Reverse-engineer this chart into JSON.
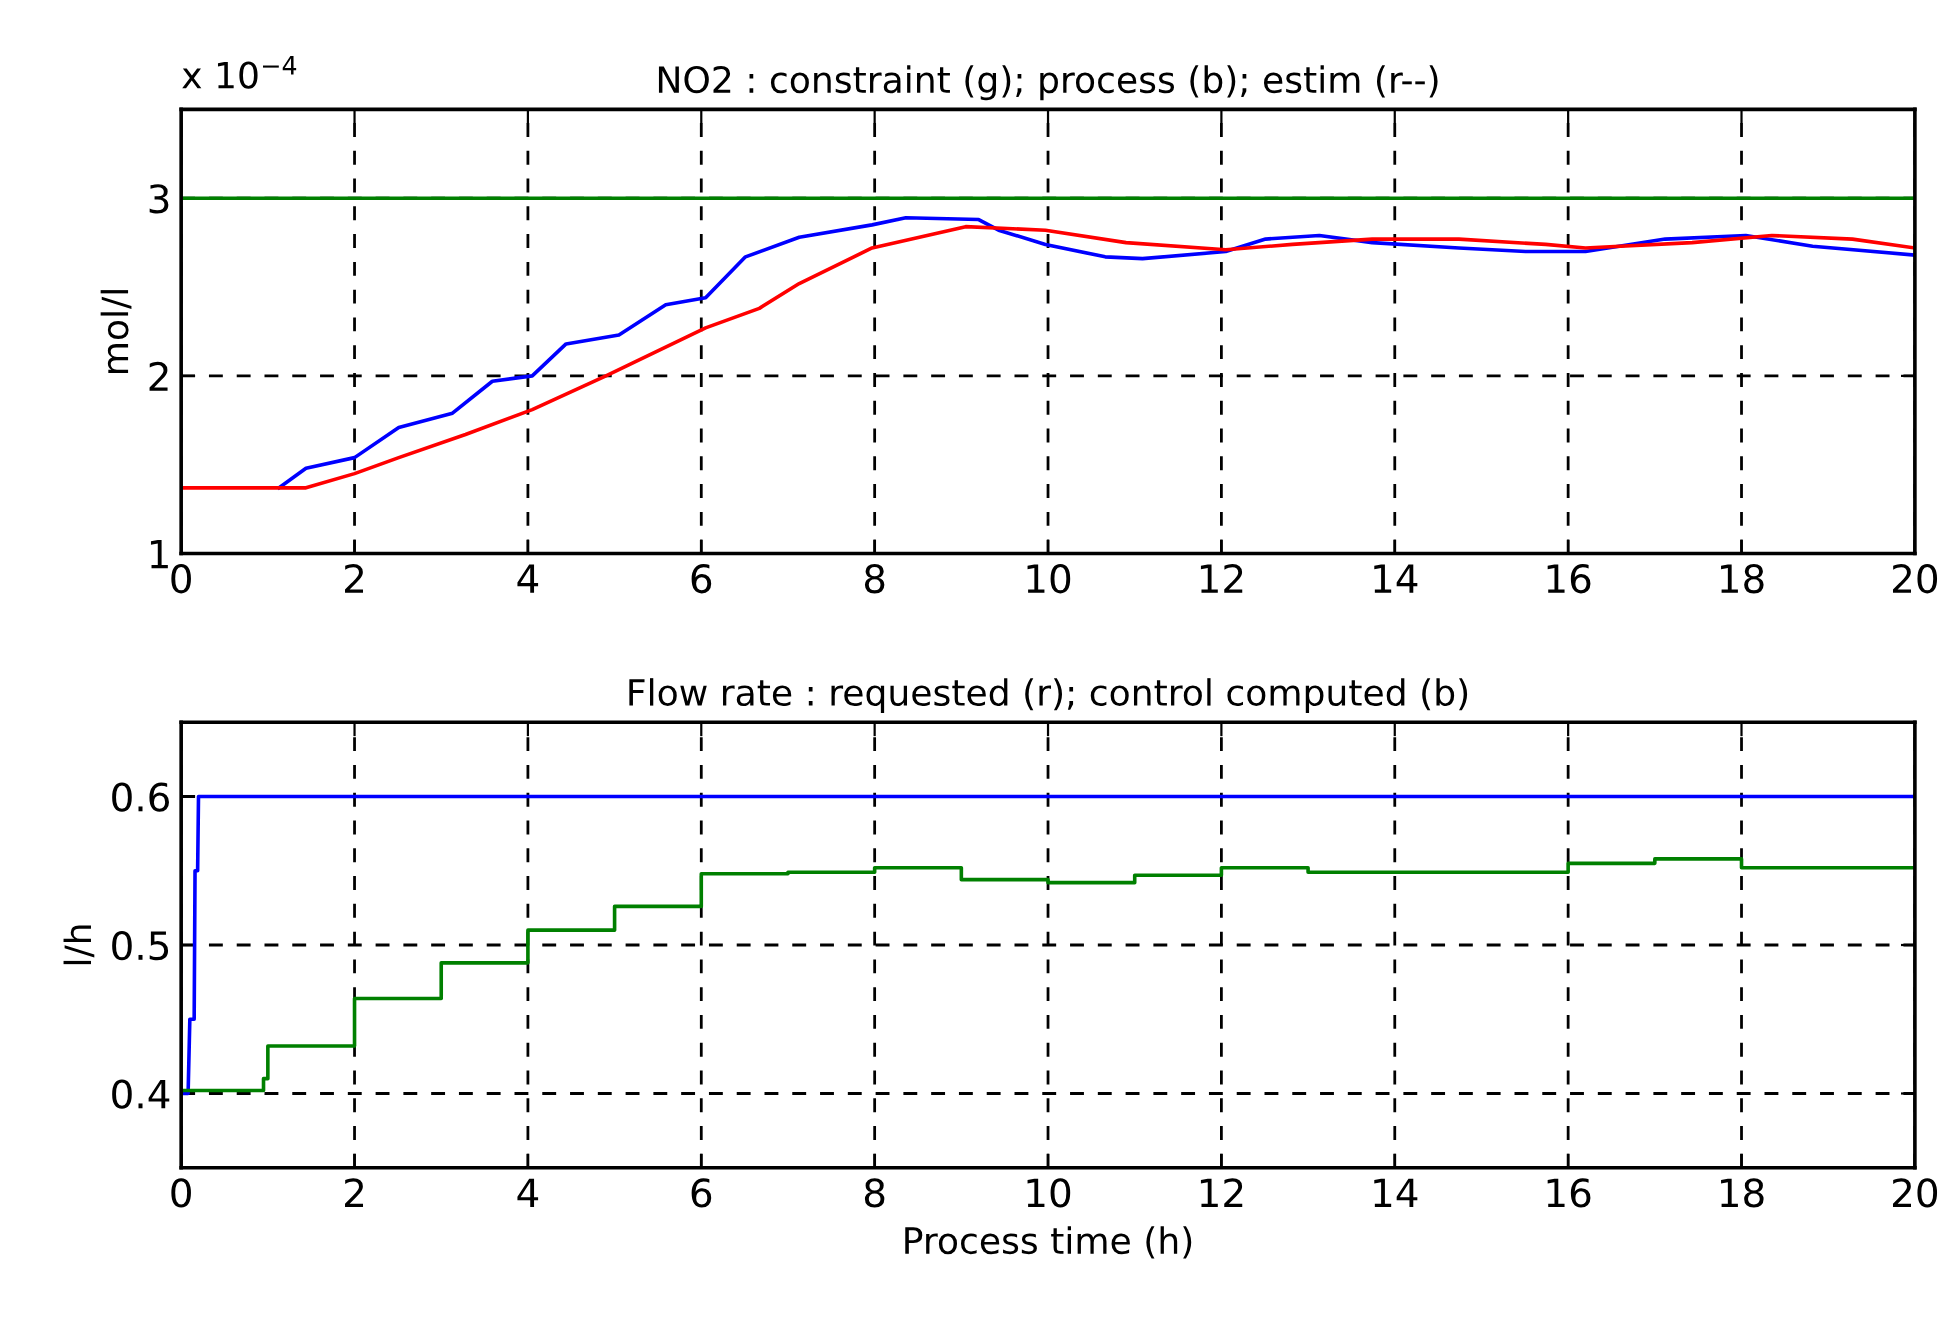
{
  "chart_data": [
    {
      "type": "line",
      "title": "NO2 : constraint (g); process (b); estim (r--)",
      "ylabel": "mol/l",
      "annotations": [
        "x 10$^{−4}$"
      ],
      "xlim": [
        0,
        20
      ],
      "xticks": [
        0,
        2,
        4,
        6,
        8,
        10,
        12,
        14,
        16,
        18,
        20
      ],
      "ylim": [
        1,
        3.5
      ],
      "yticks": [
        1,
        2,
        3
      ],
      "grid": true,
      "legend": false,
      "series": [
        {
          "color": "#008000",
          "x": [
            0,
            20
          ],
          "values": [
            3.0,
            3.0
          ]
        },
        {
          "color": "#0000ff",
          "x": [
            1.13,
            1.44,
            2.0,
            2.51,
            3.13,
            3.59,
            4.05,
            4.44,
            5.05,
            5.59,
            6.05,
            6.51,
            7.13,
            7.97,
            8.36,
            9.2,
            9.43,
            9.97,
            10.66,
            11.09,
            12.05,
            12.51,
            13.13,
            13.74,
            14.74,
            15.51,
            16.2,
            17.12,
            18.05,
            18.82,
            20
          ],
          "values": [
            1.37,
            1.48,
            1.54,
            1.71,
            1.79,
            1.97,
            2.0,
            2.18,
            2.23,
            2.4,
            2.44,
            2.67,
            2.78,
            2.85,
            2.89,
            2.88,
            2.82,
            2.74,
            2.67,
            2.66,
            2.7,
            2.77,
            2.79,
            2.75,
            2.72,
            2.7,
            2.7,
            2.77,
            2.79,
            2.73,
            2.68
          ]
        },
        {
          "color": "#ff0000",
          "x": [
            0,
            1.44,
            2.0,
            2.51,
            3.28,
            4.05,
            4.9,
            6.05,
            6.67,
            7.13,
            7.97,
            9.05,
            9.97,
            10.9,
            12.05,
            12.82,
            13.74,
            14.74,
            15.74,
            16.2,
            17.43,
            18.35,
            19.28,
            20
          ],
          "values": [
            1.37,
            1.37,
            1.45,
            1.54,
            1.67,
            1.81,
            2.0,
            2.27,
            2.38,
            2.52,
            2.72,
            2.84,
            2.82,
            2.75,
            2.71,
            2.74,
            2.77,
            2.77,
            2.74,
            2.72,
            2.75,
            2.79,
            2.77,
            2.72
          ]
        }
      ]
    },
    {
      "type": "line",
      "title": "Flow rate : requested (r); control computed (b)",
      "xlabel": "Process time (h)",
      "ylabel": "l/h",
      "xlim": [
        0,
        20
      ],
      "xticks": [
        0,
        2,
        4,
        6,
        8,
        10,
        12,
        14,
        16,
        18,
        20
      ],
      "ylim": [
        0.35,
        0.65
      ],
      "yticks": [
        0.4,
        0.5,
        0.6
      ],
      "grid": true,
      "legend": false,
      "series": [
        {
          "color": "#0000ff",
          "x": [
            0,
            0.08,
            0.1,
            0.15,
            0.16,
            0.19,
            0.2,
            20
          ],
          "values": [
            0.4,
            0.4,
            0.45,
            0.45,
            0.55,
            0.55,
            0.6,
            0.6
          ]
        },
        {
          "type": "step",
          "color": "#008000",
          "x": [
            0,
            0.95,
            1,
            2,
            3,
            4,
            5,
            6,
            7,
            8,
            9,
            10,
            11,
            12,
            13,
            14,
            15,
            16,
            17,
            18,
            19,
            20
          ],
          "values": [
            0.402,
            0.41,
            0.432,
            0.464,
            0.488,
            0.51,
            0.526,
            0.548,
            0.549,
            0.552,
            0.544,
            0.542,
            0.547,
            0.552,
            0.549,
            0.549,
            0.549,
            0.555,
            0.558,
            0.552,
            0.552,
            0.552
          ]
        }
      ]
    }
  ]
}
